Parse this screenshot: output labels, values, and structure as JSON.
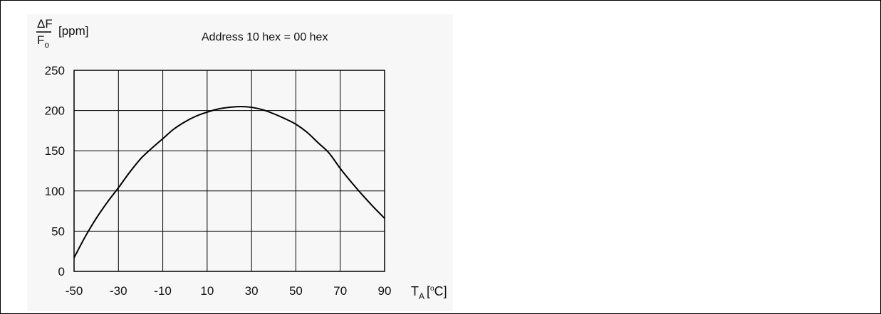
{
  "chart_data": {
    "type": "line",
    "title": "Address 10 hex = 00 hex",
    "ylabel": {
      "numerator": "ΔF",
      "denominator": "F",
      "denominator_sub": "o",
      "unit": "[ppm]"
    },
    "xlabel": {
      "main": "T",
      "sub": "A",
      "unit_prefix": "[",
      "unit_sup": "o",
      "unit_suffix": "C]"
    },
    "xlim": [
      -50,
      90
    ],
    "ylim": [
      0,
      250
    ],
    "x_ticks": [
      -50,
      -30,
      -10,
      10,
      30,
      50,
      70,
      90
    ],
    "y_ticks": [
      0,
      50,
      100,
      150,
      200,
      250
    ],
    "x_tick_labels": [
      "-50",
      "-30",
      "-10",
      "10",
      "30",
      "50",
      "70",
      "90"
    ],
    "y_tick_labels": [
      "0",
      "50",
      "100",
      "150",
      "200",
      "250"
    ],
    "grid": true,
    "series": [
      {
        "color": "#000000",
        "points": [
          {
            "x": -50,
            "y": 17
          },
          {
            "x": -45,
            "y": 43
          },
          {
            "x": -40,
            "y": 66
          },
          {
            "x": -35,
            "y": 86
          },
          {
            "x": -30,
            "y": 104
          },
          {
            "x": -25,
            "y": 123
          },
          {
            "x": -20,
            "y": 140
          },
          {
            "x": -15,
            "y": 153
          },
          {
            "x": -10,
            "y": 165
          },
          {
            "x": -5,
            "y": 177
          },
          {
            "x": 0,
            "y": 186
          },
          {
            "x": 5,
            "y": 193
          },
          {
            "x": 10,
            "y": 198
          },
          {
            "x": 15,
            "y": 202
          },
          {
            "x": 20,
            "y": 204
          },
          {
            "x": 25,
            "y": 205
          },
          {
            "x": 30,
            "y": 204
          },
          {
            "x": 35,
            "y": 201
          },
          {
            "x": 40,
            "y": 196
          },
          {
            "x": 45,
            "y": 190
          },
          {
            "x": 50,
            "y": 183
          },
          {
            "x": 55,
            "y": 173
          },
          {
            "x": 60,
            "y": 160
          },
          {
            "x": 65,
            "y": 147
          },
          {
            "x": 70,
            "y": 128
          },
          {
            "x": 75,
            "y": 111
          },
          {
            "x": 80,
            "y": 95
          },
          {
            "x": 85,
            "y": 80
          },
          {
            "x": 90,
            "y": 66
          }
        ]
      }
    ]
  }
}
